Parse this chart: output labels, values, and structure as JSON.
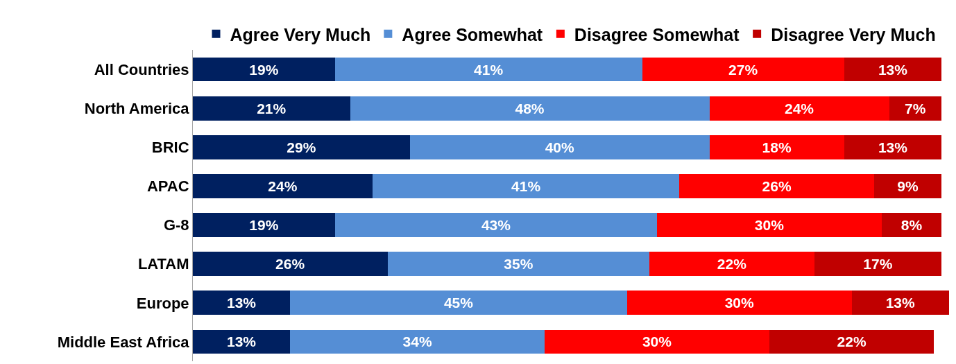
{
  "chart_data": {
    "type": "bar",
    "orientation": "horizontal",
    "stacked": true,
    "legend": "top",
    "tick_labels": "y",
    "xlim": [
      0,
      101
    ],
    "categories": [
      "All Countries",
      "North America",
      "BRIC",
      "APAC",
      "G-8",
      "LATAM",
      "Europe",
      "Middle East Africa"
    ],
    "series": [
      {
        "name": "Agree Very Much",
        "color": "#002060",
        "values": [
          19,
          21,
          29,
          24,
          19,
          26,
          13,
          13
        ],
        "value_labels": [
          "19%",
          "21%",
          "29%",
          "24%",
          "19%",
          "26%",
          "13%",
          "13%"
        ]
      },
      {
        "name": "Agree Somewhat",
        "color": "#558ed5",
        "values": [
          41,
          48,
          40,
          41,
          43,
          35,
          45,
          34
        ],
        "value_labels": [
          "41%",
          "48%",
          "40%",
          "41%",
          "43%",
          "35%",
          "45%",
          "34%"
        ]
      },
      {
        "name": "Disagree Somewhat",
        "color": "#ff0000",
        "values": [
          27,
          24,
          18,
          26,
          30,
          22,
          30,
          30
        ],
        "value_labels": [
          "27%",
          "24%",
          "18%",
          "26%",
          "30%",
          "22%",
          "30%",
          "30%"
        ]
      },
      {
        "name": "Disagree Very Much",
        "color": "#c00000",
        "values": [
          13,
          7,
          13,
          9,
          8,
          17,
          13,
          22
        ],
        "value_labels": [
          "13%",
          "7%",
          "13%",
          "9%",
          "8%",
          "17%",
          "13%",
          "22%"
        ]
      }
    ]
  }
}
